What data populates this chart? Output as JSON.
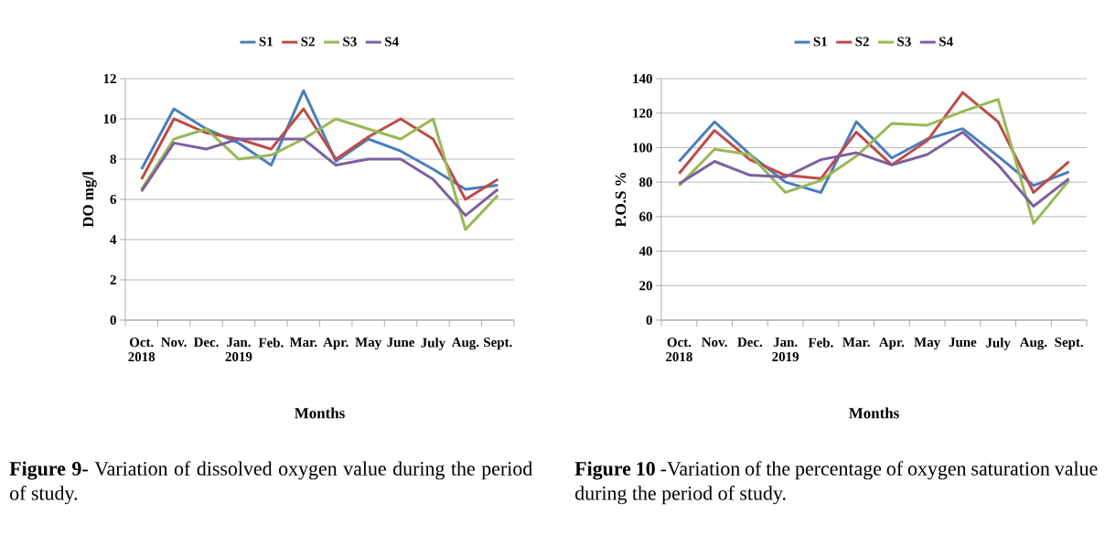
{
  "chart_data": [
    {
      "type": "line",
      "ylabel": "DO mg/l",
      "xlabel": "Months",
      "categories": [
        "Oct. 2018",
        "Nov.",
        "Dec.",
        "Jan. 2019",
        "Feb.",
        "Mar.",
        "Apr.",
        "May",
        "June",
        "July",
        "Aug.",
        "Sept."
      ],
      "ylim": [
        0,
        12
      ],
      "yticks": [
        0,
        2,
        4,
        6,
        8,
        10,
        12
      ],
      "grid": "y",
      "legend": "top",
      "marker": "none",
      "line_style": "solid",
      "series": [
        {
          "name": "S1",
          "color": "#4a7ebb",
          "values": [
            7.5,
            10.5,
            9.5,
            8.8,
            7.7,
            11.4,
            7.9,
            9.0,
            8.4,
            7.5,
            6.5,
            6.7
          ]
        },
        {
          "name": "S2",
          "color": "#be4b48",
          "values": [
            7.0,
            10.0,
            9.3,
            9.0,
            8.5,
            10.5,
            8.0,
            9.1,
            10.0,
            9.0,
            6.0,
            7.0
          ]
        },
        {
          "name": "S3",
          "color": "#98b954",
          "values": [
            6.5,
            9.0,
            9.5,
            8.0,
            8.2,
            9.0,
            10.0,
            9.5,
            9.0,
            10.0,
            4.5,
            6.2
          ]
        },
        {
          "name": "S4",
          "color": "#7d60a0",
          "values": [
            6.4,
            8.8,
            8.5,
            9.0,
            9.0,
            9.0,
            7.7,
            8.0,
            8.0,
            7.0,
            5.2,
            6.5
          ]
        }
      ],
      "annotations": [
        "**Figure 9-** Variation of dissolved oxygen value during the period of study."
      ]
    },
    {
      "type": "line",
      "ylabel": "P.O.S %",
      "xlabel": "Months",
      "categories": [
        "Oct. 2018",
        "Nov.",
        "Dec.",
        "Jan. 2019",
        "Feb.",
        "Mar.",
        "Apr.",
        "May",
        "June",
        "July",
        "Aug.",
        "Sept."
      ],
      "ylim": [
        0,
        140
      ],
      "yticks": [
        0,
        20,
        40,
        60,
        80,
        100,
        120,
        140
      ],
      "grid": "y",
      "legend": "top",
      "marker": "none",
      "line_style": "solid",
      "series": [
        {
          "name": "S1",
          "color": "#4a7ebb",
          "values": [
            92,
            115,
            96,
            80,
            74,
            115,
            94,
            105,
            111,
            95,
            78,
            86
          ]
        },
        {
          "name": "S2",
          "color": "#be4b48",
          "values": [
            85,
            110,
            93,
            84,
            82,
            109,
            90,
            104,
            132,
            115,
            74,
            92
          ]
        },
        {
          "name": "S3",
          "color": "#98b954",
          "values": [
            78,
            99,
            96,
            74,
            81,
            95,
            114,
            113,
            121,
            128,
            56,
            81
          ]
        },
        {
          "name": "S4",
          "color": "#7d60a0",
          "values": [
            79,
            92,
            84,
            83,
            93,
            97,
            90,
            96,
            109,
            90,
            66,
            82
          ]
        }
      ],
      "annotations": [
        "**Figure 10** -Variation of the percentage of oxygen saturation value during the period of study."
      ]
    }
  ]
}
